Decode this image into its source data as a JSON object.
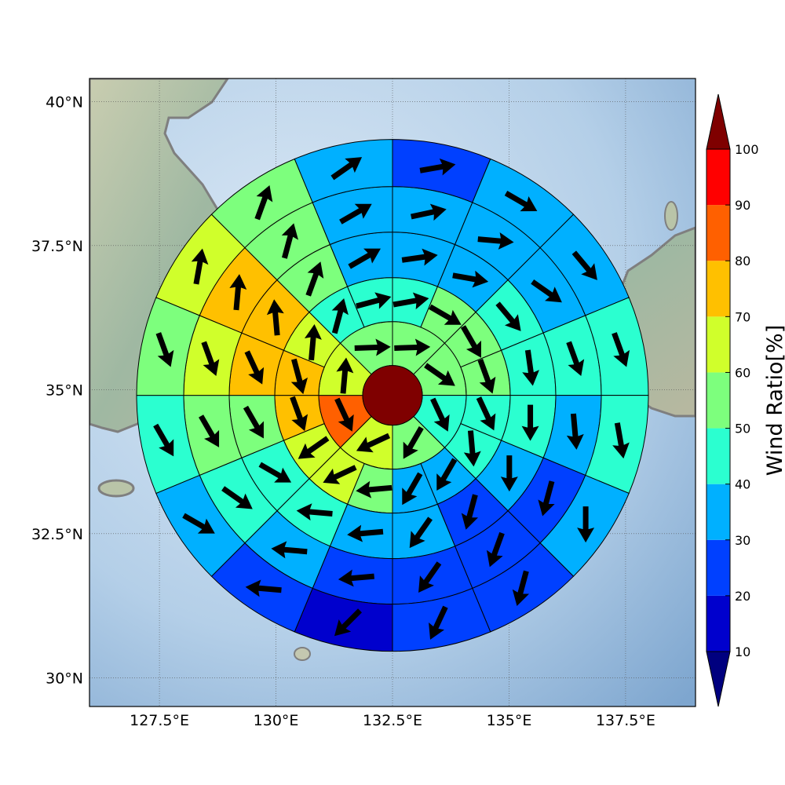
{
  "chart_data": {
    "type": "heatmap",
    "subtype": "polar-sector wind map",
    "map_extent": {
      "lon": [
        126.0,
        139.0
      ],
      "lat": [
        29.5,
        40.4
      ]
    },
    "center": {
      "lon": 132.5,
      "lat": 34.9
    },
    "x_ticks": [
      {
        "value": 127.5,
        "label": "127.5°E"
      },
      {
        "value": 130.0,
        "label": "130°E"
      },
      {
        "value": 132.5,
        "label": "132.5°E"
      },
      {
        "value": 135.0,
        "label": "135°E"
      },
      {
        "value": 137.5,
        "label": "137.5°E"
      }
    ],
    "y_ticks": [
      {
        "value": 30.0,
        "label": "30°N"
      },
      {
        "value": 32.5,
        "label": "32.5°N"
      },
      {
        "value": 35.0,
        "label": "35°N"
      },
      {
        "value": 37.5,
        "label": "37.5°N"
      },
      {
        "value": 40.0,
        "label": "40°N"
      }
    ],
    "grid": true,
    "colorbar": {
      "label": "Wind Ratio[%]",
      "levels": [
        10,
        20,
        30,
        40,
        50,
        60,
        70,
        80,
        90,
        100
      ],
      "colors": [
        "#0000cd",
        "#0040ff",
        "#00b0ff",
        "#2bffd0",
        "#7dff7d",
        "#d0ff2b",
        "#ffc000",
        "#ff6000",
        "#ff0000"
      ],
      "under_color": "#00007f",
      "over_color": "#7f0000",
      "extend": "both"
    },
    "center_disk": {
      "value": 100
    },
    "rings": [
      {
        "ring": 1,
        "sectors": [
          {
            "direction": "ENE",
            "ratio": 55,
            "wind_dir_deg": 88
          },
          {
            "direction": "ESE",
            "ratio": 55,
            "wind_dir_deg": 125
          },
          {
            "direction": "SSE",
            "ratio": 45,
            "wind_dir_deg": 155
          },
          {
            "direction": "SSW",
            "ratio": 55,
            "wind_dir_deg": 210
          },
          {
            "direction": "WSW",
            "ratio": 65,
            "wind_dir_deg": 245
          },
          {
            "direction": "WNW",
            "ratio": 85,
            "wind_dir_deg": 155
          },
          {
            "direction": "NNW",
            "ratio": 65,
            "wind_dir_deg": 5
          },
          {
            "direction": "NNE",
            "ratio": 55,
            "wind_dir_deg": 88
          }
        ]
      },
      {
        "ring": 2,
        "sectors": [
          {
            "direction": "NNE",
            "ratio": 45,
            "wind_dir_deg": 80
          },
          {
            "direction": "NE",
            "ratio": 55,
            "wind_dir_deg": 120
          },
          {
            "direction": "ENE",
            "ratio": 55,
            "wind_dir_deg": 150
          },
          {
            "direction": "E",
            "ratio": 55,
            "wind_dir_deg": 160
          },
          {
            "direction": "ESE",
            "ratio": 45,
            "wind_dir_deg": 155
          },
          {
            "direction": "SE",
            "ratio": 45,
            "wind_dir_deg": 175
          },
          {
            "direction": "SSE",
            "ratio": 35,
            "wind_dir_deg": 210
          },
          {
            "direction": "S",
            "ratio": 35,
            "wind_dir_deg": 210
          },
          {
            "direction": "SSW",
            "ratio": 55,
            "wind_dir_deg": 265
          },
          {
            "direction": "SW",
            "ratio": 65,
            "wind_dir_deg": 245
          },
          {
            "direction": "WSW",
            "ratio": 65,
            "wind_dir_deg": 235
          },
          {
            "direction": "W",
            "ratio": 75,
            "wind_dir_deg": 160
          },
          {
            "direction": "WNW",
            "ratio": 75,
            "wind_dir_deg": 165
          },
          {
            "direction": "NW",
            "ratio": 65,
            "wind_dir_deg": 5
          },
          {
            "direction": "NNW",
            "ratio": 45,
            "wind_dir_deg": 15
          },
          {
            "direction": "N",
            "ratio": 45,
            "wind_dir_deg": 75
          }
        ]
      },
      {
        "ring": 3,
        "sectors": [
          {
            "direction": "NNE",
            "ratio": 35,
            "wind_dir_deg": 82
          },
          {
            "direction": "NE",
            "ratio": 35,
            "wind_dir_deg": 100
          },
          {
            "direction": "ENE",
            "ratio": 45,
            "wind_dir_deg": 140
          },
          {
            "direction": "E",
            "ratio": 45,
            "wind_dir_deg": 172
          },
          {
            "direction": "ESE",
            "ratio": 45,
            "wind_dir_deg": 180
          },
          {
            "direction": "SE",
            "ratio": 35,
            "wind_dir_deg": 180
          },
          {
            "direction": "SSE",
            "ratio": 25,
            "wind_dir_deg": 195
          },
          {
            "direction": "S",
            "ratio": 35,
            "wind_dir_deg": 215
          },
          {
            "direction": "SSW",
            "ratio": 35,
            "wind_dir_deg": 265
          },
          {
            "direction": "SW",
            "ratio": 45,
            "wind_dir_deg": 275
          },
          {
            "direction": "WSW",
            "ratio": 45,
            "wind_dir_deg": 120
          },
          {
            "direction": "W",
            "ratio": 55,
            "wind_dir_deg": 150
          },
          {
            "direction": "WNW",
            "ratio": 75,
            "wind_dir_deg": 155
          },
          {
            "direction": "NW",
            "ratio": 75,
            "wind_dir_deg": 355
          },
          {
            "direction": "NNW",
            "ratio": 55,
            "wind_dir_deg": 20
          },
          {
            "direction": "N",
            "ratio": 35,
            "wind_dir_deg": 60
          }
        ]
      },
      {
        "ring": 4,
        "sectors": [
          {
            "direction": "NNE",
            "ratio": 35,
            "wind_dir_deg": 78
          },
          {
            "direction": "NE",
            "ratio": 35,
            "wind_dir_deg": 95
          },
          {
            "direction": "ENE",
            "ratio": 35,
            "wind_dir_deg": 125
          },
          {
            "direction": "E",
            "ratio": 45,
            "wind_dir_deg": 160
          },
          {
            "direction": "ESE",
            "ratio": 35,
            "wind_dir_deg": 175
          },
          {
            "direction": "SE",
            "ratio": 25,
            "wind_dir_deg": 195
          },
          {
            "direction": "SSE",
            "ratio": 25,
            "wind_dir_deg": 200
          },
          {
            "direction": "S",
            "ratio": 25,
            "wind_dir_deg": 215
          },
          {
            "direction": "SSW",
            "ratio": 25,
            "wind_dir_deg": 265
          },
          {
            "direction": "SW",
            "ratio": 35,
            "wind_dir_deg": 275
          },
          {
            "direction": "WSW",
            "ratio": 45,
            "wind_dir_deg": 125
          },
          {
            "direction": "W",
            "ratio": 55,
            "wind_dir_deg": 150
          },
          {
            "direction": "WNW",
            "ratio": 65,
            "wind_dir_deg": 160
          },
          {
            "direction": "NW",
            "ratio": 75,
            "wind_dir_deg": 5
          },
          {
            "direction": "NNW",
            "ratio": 55,
            "wind_dir_deg": 15
          },
          {
            "direction": "N",
            "ratio": 35,
            "wind_dir_deg": 60
          }
        ]
      },
      {
        "ring": 5,
        "sectors": [
          {
            "direction": "NNE",
            "ratio": 25,
            "wind_dir_deg": 80
          },
          {
            "direction": "NE",
            "ratio": 35,
            "wind_dir_deg": 120
          },
          {
            "direction": "ENE",
            "ratio": 35,
            "wind_dir_deg": 140
          },
          {
            "direction": "E",
            "ratio": 45,
            "wind_dir_deg": 160
          },
          {
            "direction": "ESE",
            "ratio": 45,
            "wind_dir_deg": 170
          },
          {
            "direction": "SE",
            "ratio": 35,
            "wind_dir_deg": 180
          },
          {
            "direction": "SSE",
            "ratio": 25,
            "wind_dir_deg": 195
          },
          {
            "direction": "S",
            "ratio": 25,
            "wind_dir_deg": 205
          },
          {
            "direction": "SSW",
            "ratio": 15,
            "wind_dir_deg": 225
          },
          {
            "direction": "SW",
            "ratio": 25,
            "wind_dir_deg": 275
          },
          {
            "direction": "WSW",
            "ratio": 35,
            "wind_dir_deg": 120
          },
          {
            "direction": "W",
            "ratio": 45,
            "wind_dir_deg": 150
          },
          {
            "direction": "WNW",
            "ratio": 55,
            "wind_dir_deg": 160
          },
          {
            "direction": "NW",
            "ratio": 65,
            "wind_dir_deg": 10
          },
          {
            "direction": "NNW",
            "ratio": 55,
            "wind_dir_deg": 20
          },
          {
            "direction": "N",
            "ratio": 35,
            "wind_dir_deg": 55
          }
        ]
      }
    ]
  }
}
